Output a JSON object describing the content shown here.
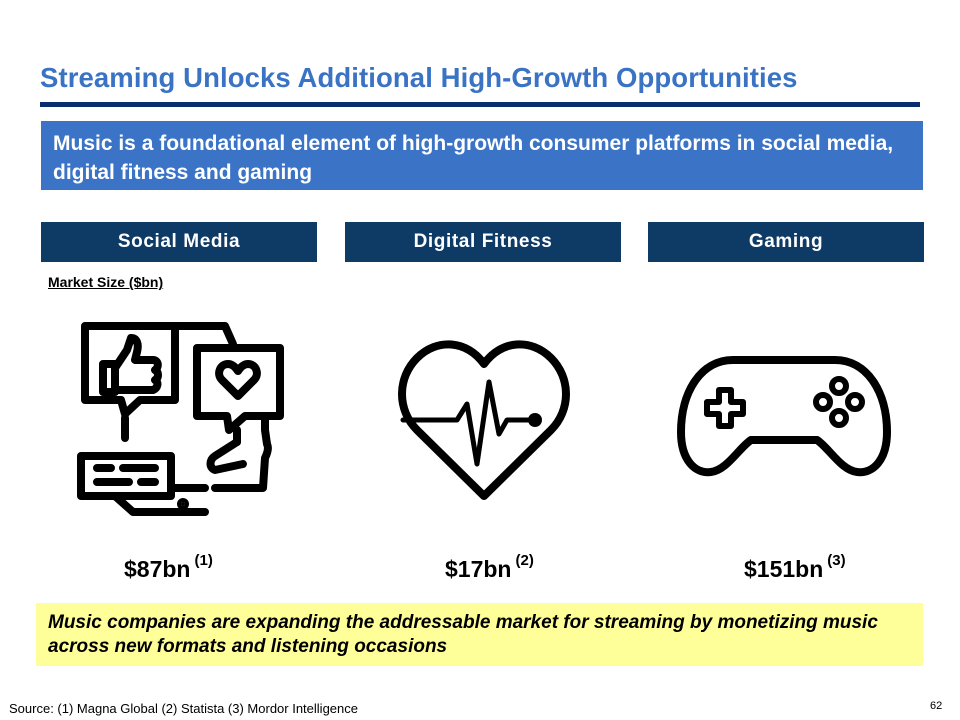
{
  "title": "Streaming Unlocks Additional High-Growth Opportunities",
  "banner": "Music is a foundational element of high-growth consumer platforms in social media, digital fitness and gaming",
  "categories": [
    {
      "label": "Social Media",
      "icon": "social-media-icon",
      "value": "$87bn",
      "note": "(1)"
    },
    {
      "label": "Digital Fitness",
      "icon": "heart-rate-icon",
      "value": "$17bn",
      "note": "(2)"
    },
    {
      "label": "Gaming",
      "icon": "game-controller-icon",
      "value": "$151bn",
      "note": "(3)"
    }
  ],
  "market_size_label": "Market Size ($bn)",
  "callout": "Music companies are expanding the addressable market for streaming by monetizing music across new formats and listening occasions",
  "source": "Source: (1) Magna Global (2) Statista (3) Mordor Intelligence",
  "page_number": "62",
  "colors": {
    "title": "#3a73c4",
    "rule": "#0a2d6b",
    "banner": "#3b74c6",
    "category": "#0e3a66",
    "callout": "#ffff99"
  }
}
